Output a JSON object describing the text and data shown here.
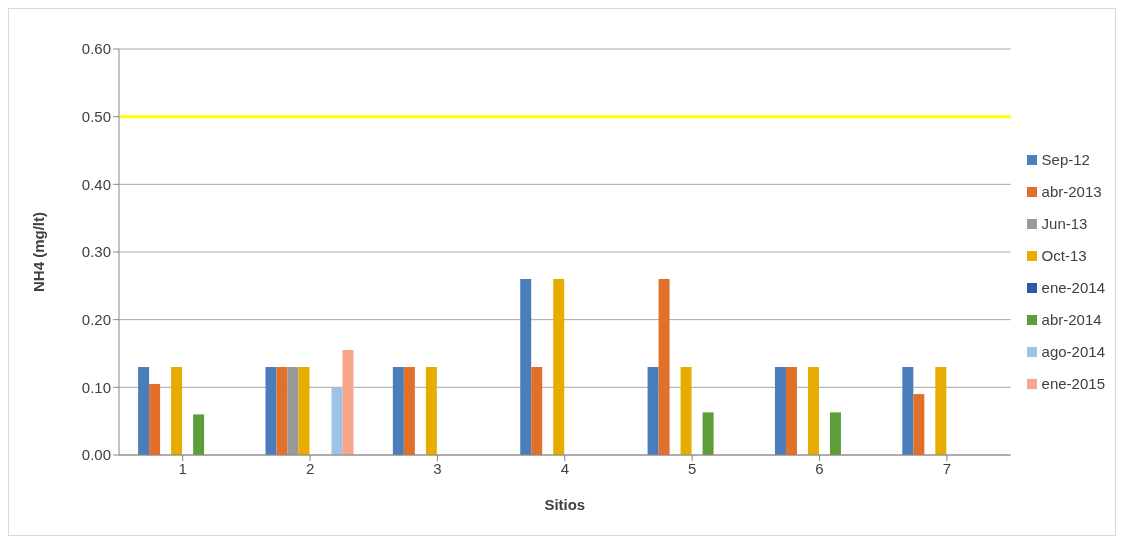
{
  "chart_data": {
    "type": "bar",
    "xlabel": "Sitios",
    "ylabel": "NH4 (mg/lt)",
    "categories": [
      "1",
      "2",
      "3",
      "4",
      "5",
      "6",
      "7"
    ],
    "series": [
      {
        "name": "Sep-12",
        "color": "#4a7ebb",
        "values": [
          0.13,
          0.13,
          0.13,
          0.26,
          0.13,
          0.13,
          0.13
        ]
      },
      {
        "name": "abr-2013",
        "color": "#e0702a",
        "values": [
          0.105,
          0.13,
          0.13,
          0.13,
          0.26,
          0.13,
          0.09
        ]
      },
      {
        "name": "Jun-13",
        "color": "#999999",
        "values": [
          null,
          0.13,
          null,
          null,
          null,
          null,
          null
        ]
      },
      {
        "name": "Oct-13",
        "color": "#e6ac00",
        "values": [
          0.13,
          0.13,
          0.13,
          0.26,
          0.13,
          0.13,
          0.13
        ]
      },
      {
        "name": "ene-2014",
        "color": "#2c5aa8",
        "values": [
          null,
          null,
          null,
          null,
          null,
          null,
          null
        ]
      },
      {
        "name": "abr-2014",
        "color": "#5e9e3a",
        "values": [
          0.06,
          null,
          null,
          null,
          0.063,
          0.063,
          null
        ]
      },
      {
        "name": "ago-2014",
        "color": "#9dc3e6",
        "values": [
          null,
          0.1,
          null,
          null,
          null,
          null,
          null
        ]
      },
      {
        "name": "ene-2015",
        "color": "#f4a58a",
        "values": [
          null,
          0.155,
          null,
          null,
          null,
          null,
          null
        ]
      }
    ],
    "ylim": [
      0,
      0.6
    ],
    "yticks": [
      {
        "value": 0,
        "label": "0.00"
      },
      {
        "value": 0.1,
        "label": "0.10"
      },
      {
        "value": 0.2,
        "label": "0.20"
      },
      {
        "value": 0.3,
        "label": "0.30"
      },
      {
        "value": 0.4,
        "label": "0.40"
      },
      {
        "value": 0.5,
        "label": "0.50"
      },
      {
        "value": 0.6,
        "label": "0.60"
      }
    ],
    "ref_lines": [
      {
        "axis": "y",
        "value": 0.5,
        "color": "#ffff00"
      }
    ],
    "grid": "y",
    "legend": "right"
  }
}
